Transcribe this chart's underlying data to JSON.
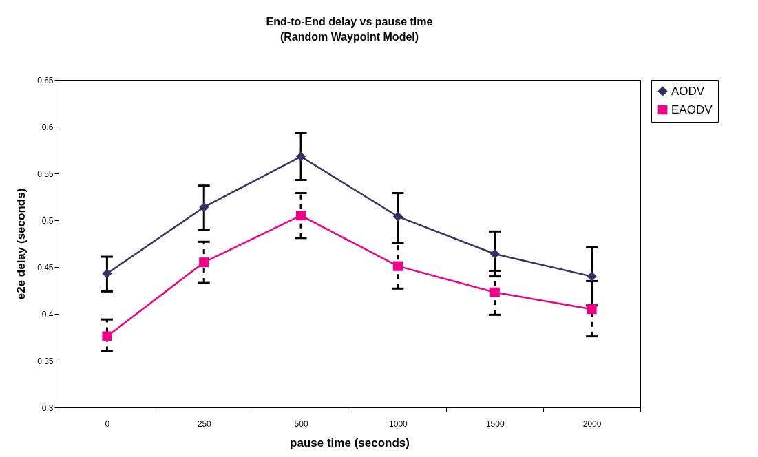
{
  "chart_data": {
    "type": "line",
    "title": "End-to-End delay vs pause time",
    "subtitle": "(Random Waypoint Model)",
    "xlabel": "pause time (seconds)",
    "ylabel": "e2e delay (seconds)",
    "categories": [
      "0",
      "250",
      "500",
      "1000",
      "1500",
      "2000"
    ],
    "ylim": [
      0.3,
      0.65
    ],
    "yticks": [
      0.3,
      0.35,
      0.4,
      0.45,
      0.5,
      0.55,
      0.6,
      0.65
    ],
    "grid": false,
    "legend": "right",
    "series": [
      {
        "name": "AODV",
        "color": "#333366",
        "marker": "diamond",
        "values": [
          0.443,
          0.514,
          0.568,
          0.504,
          0.464,
          0.44
        ],
        "errors": [
          [
            0.424,
            0.461
          ],
          [
            0.49,
            0.537
          ],
          [
            0.543,
            0.593
          ],
          [
            0.476,
            0.529
          ],
          [
            0.44,
            0.488
          ],
          [
            0.409,
            0.471
          ]
        ]
      },
      {
        "name": "EAODV",
        "color": "#ee0088",
        "marker": "square",
        "values": [
          0.376,
          0.455,
          0.505,
          0.451,
          0.423,
          0.405
        ],
        "errors": [
          [
            0.36,
            0.394
          ],
          [
            0.433,
            0.477
          ],
          [
            0.481,
            0.529
          ],
          [
            0.427,
            0.476
          ],
          [
            0.399,
            0.446
          ],
          [
            0.376,
            0.435
          ]
        ]
      }
    ]
  }
}
